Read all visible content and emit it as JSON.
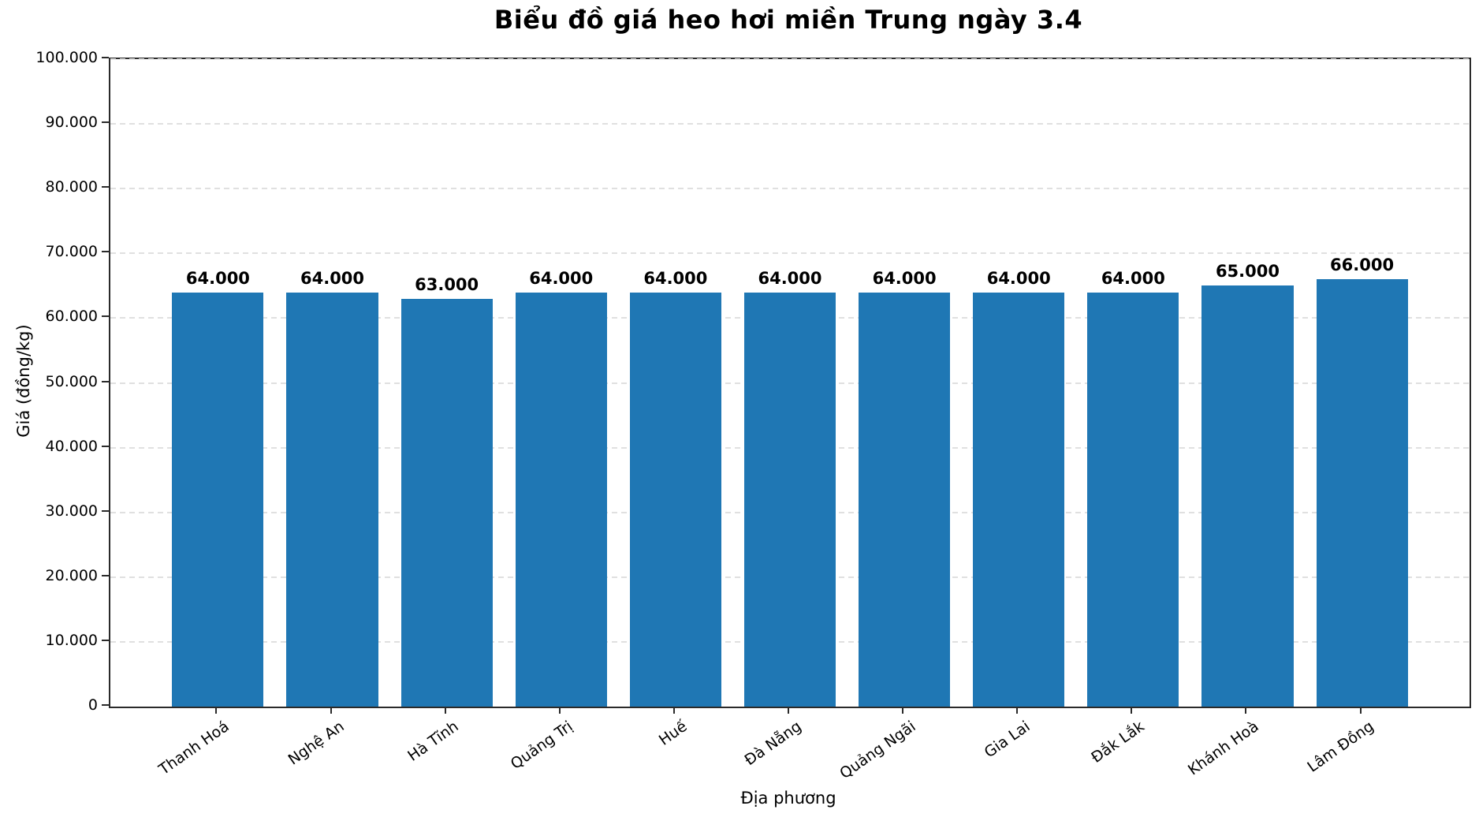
{
  "chart_data": {
    "type": "bar",
    "title": "Biểu đồ giá heo hơi miền Trung ngày 3.4",
    "xlabel": "Địa phương",
    "ylabel": "Giá (đồng/kg)",
    "categories": [
      "Thanh Hoá",
      "Nghệ An",
      "Hà Tĩnh",
      "Quảng Trị",
      "Huế",
      "Đà Nẵng",
      "Quảng Ngãi",
      "Gia Lai",
      "Đắk Lắk",
      "Khánh Hoà",
      "Lâm Đồng"
    ],
    "values": [
      64000,
      64000,
      63000,
      64000,
      64000,
      64000,
      64000,
      64000,
      64000,
      65000,
      66000
    ],
    "bar_value_labels": [
      "64.000",
      "64.000",
      "63.000",
      "64.000",
      "64.000",
      "64.000",
      "64.000",
      "64.000",
      "64.000",
      "65.000",
      "66.000"
    ],
    "ylim": [
      0,
      100000
    ],
    "ytick_values": [
      0,
      10000,
      20000,
      30000,
      40000,
      50000,
      60000,
      70000,
      80000,
      90000,
      100000
    ],
    "ytick_labels": [
      "0",
      "10.000",
      "20.000",
      "30.000",
      "40.000",
      "50.000",
      "60.000",
      "70.000",
      "80.000",
      "90.000",
      "100.000"
    ],
    "grid": {
      "axis": "y",
      "style": "dashed",
      "color": "#e0e0e0"
    },
    "legend": null,
    "bar_color": "#1f77b4",
    "axis_color": "#2a2a2a",
    "text_color": "#000000"
  }
}
